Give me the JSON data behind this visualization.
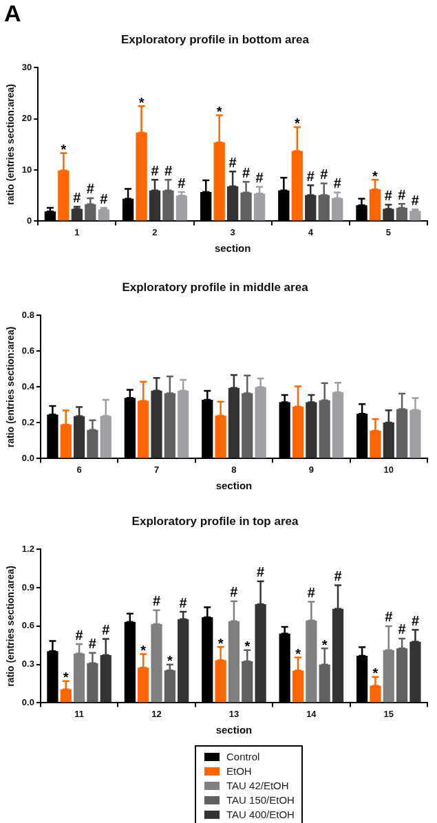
{
  "chart_data": [
    {
      "type": "bar",
      "title": "Exploratory profile in bottom area",
      "xlabel": "section",
      "ylabel": "ratio (entries section:area)",
      "annotations": [
        "A"
      ],
      "categories": [
        "1",
        "2",
        "3",
        "4",
        "5"
      ],
      "ylim": [
        0,
        30
      ],
      "yticks": [
        0,
        10,
        20,
        30
      ],
      "legend": false,
      "series": [
        {
          "color": "#000000",
          "values": [
            1.9,
            4.4,
            5.7,
            6.0,
            3.1
          ],
          "errors": [
            [
              1.9,
              2.6
            ],
            [
              4.4,
              6.3
            ],
            [
              5.7,
              8.0
            ],
            [
              6.0,
              8.5
            ],
            [
              3.1,
              4.4
            ]
          ]
        },
        {
          "color": "#ff6600",
          "values": [
            9.9,
            17.3,
            15.4,
            13.7,
            6.2
          ],
          "errors": [
            [
              9.9,
              13.3
            ],
            [
              17.3,
              22.5
            ],
            [
              15.4,
              20.7
            ],
            [
              13.7,
              18.4
            ],
            [
              6.2,
              8.1
            ]
          ],
          "value_labels": [
            "*",
            "*",
            "*",
            "*",
            "*"
          ]
        },
        {
          "color": "#333333",
          "values": [
            2.4,
            6.0,
            6.8,
            5.1,
            2.4
          ],
          "errors": [
            [
              2.4,
              2.8
            ],
            [
              6.0,
              8.1
            ],
            [
              6.8,
              9.7
            ],
            [
              5.1,
              7.0
            ],
            [
              2.4,
              3.2
            ]
          ],
          "value_labels": [
            "#",
            "#",
            "#",
            "#",
            "#"
          ]
        },
        {
          "color": "#606060",
          "values": [
            3.3,
            6.0,
            5.6,
            5.1,
            2.6
          ],
          "errors": [
            [
              3.3,
              4.5
            ],
            [
              6.0,
              8.1
            ],
            [
              5.6,
              7.7
            ],
            [
              5.1,
              7.4
            ],
            [
              2.6,
              3.4
            ]
          ],
          "value_labels": [
            "#",
            "#",
            "#",
            "#",
            "#"
          ]
        },
        {
          "color": "#a0a0a4",
          "values": [
            2.3,
            5.0,
            5.4,
            4.5,
            2.0
          ],
          "errors": [
            [
              2.3,
              2.6
            ],
            [
              5.0,
              5.7
            ],
            [
              5.4,
              6.7
            ],
            [
              4.5,
              5.6
            ],
            [
              2.0,
              2.3
            ]
          ],
          "value_labels": [
            "#",
            "#",
            "#",
            "#",
            "#"
          ]
        }
      ]
    },
    {
      "type": "bar",
      "title": "Exploratory profile in middle area",
      "xlabel": "section",
      "ylabel": "ratio (entries section:area)",
      "categories": [
        "6",
        "7",
        "8",
        "9",
        "10"
      ],
      "ylim": [
        0,
        0.8
      ],
      "yticks": [
        {
          "value": 0,
          "label": "0.0"
        },
        {
          "value": 0.2,
          "label": "0.2"
        },
        {
          "value": 0.4,
          "label": "0.4"
        },
        {
          "value": 0.6,
          "label": "0.6"
        },
        {
          "value": 0.8,
          "label": "0.8"
        }
      ],
      "legend": false,
      "series": [
        {
          "color": "#000000",
          "values": [
            0.246,
            0.339,
            0.328,
            0.315,
            0.251
          ],
          "errors": [
            [
              0.246,
              0.294
            ],
            [
              0.339,
              0.384
            ],
            [
              0.328,
              0.378
            ],
            [
              0.315,
              0.355
            ],
            [
              0.251,
              0.304
            ]
          ]
        },
        {
          "color": "#ff6600",
          "values": [
            0.19,
            0.323,
            0.24,
            0.29,
            0.155
          ],
          "errors": [
            [
              0.19,
              0.269
            ],
            [
              0.323,
              0.429
            ],
            [
              0.24,
              0.318
            ],
            [
              0.29,
              0.403
            ],
            [
              0.155,
              0.221
            ]
          ]
        },
        {
          "color": "#333333",
          "values": [
            0.237,
            0.379,
            0.395,
            0.315,
            0.202
          ],
          "errors": [
            [
              0.237,
              0.288
            ],
            [
              0.379,
              0.451
            ],
            [
              0.395,
              0.467
            ],
            [
              0.315,
              0.355
            ],
            [
              0.202,
              0.27
            ]
          ]
        },
        {
          "color": "#606060",
          "values": [
            0.16,
            0.365,
            0.365,
            0.326,
            0.277
          ],
          "errors": [
            [
              0.16,
              0.214
            ],
            [
              0.365,
              0.459
            ],
            [
              0.365,
              0.464
            ],
            [
              0.326,
              0.422
            ],
            [
              0.277,
              0.363
            ]
          ]
        },
        {
          "color": "#a0a0a4",
          "values": [
            0.238,
            0.379,
            0.4,
            0.371,
            0.272
          ],
          "errors": [
            [
              0.238,
              0.328
            ],
            [
              0.379,
              0.44
            ],
            [
              0.4,
              0.448
            ],
            [
              0.371,
              0.424
            ],
            [
              0.272,
              0.338
            ]
          ]
        }
      ]
    },
    {
      "type": "bar",
      "title": "Exploratory profile in top area",
      "xlabel": "section",
      "ylabel": "ratio (entries section:area)",
      "categories": [
        "11",
        "12",
        "13",
        "14",
        "15"
      ],
      "ylim": [
        0,
        1.2
      ],
      "yticks": [
        {
          "value": 0,
          "label": "0.0"
        },
        {
          "value": 0.3,
          "label": "0.3"
        },
        {
          "value": 0.6,
          "label": "0.6"
        },
        {
          "value": 0.9,
          "label": "0.9"
        },
        {
          "value": 1.2,
          "label": "1.2"
        }
      ],
      "legend": "bottom",
      "series": [
        {
          "name": "Control",
          "color": "#000000",
          "values": [
            0.404,
            0.633,
            0.67,
            0.542,
            0.368
          ],
          "errors": [
            [
              0.404,
              0.484
            ],
            [
              0.633,
              0.697
            ],
            [
              0.67,
              0.747
            ],
            [
              0.542,
              0.594
            ],
            [
              0.368,
              0.435
            ]
          ]
        },
        {
          "name": "EtOH",
          "color": "#ff6600",
          "values": [
            0.106,
            0.275,
            0.333,
            0.252,
            0.134
          ],
          "errors": [
            [
              0.106,
              0.17
            ],
            [
              0.275,
              0.381
            ],
            [
              0.333,
              0.437
            ],
            [
              0.252,
              0.354
            ],
            [
              0.134,
              0.203
            ]
          ],
          "value_labels": [
            "*",
            "*",
            "*",
            "*",
            "*"
          ]
        },
        {
          "name": "TAU 42/EtOH",
          "color": "#808080",
          "values": [
            0.385,
            0.615,
            0.639,
            0.644,
            0.412
          ],
          "errors": [
            [
              0.385,
              0.459
            ],
            [
              0.615,
              0.724
            ],
            [
              0.639,
              0.794
            ],
            [
              0.644,
              0.79
            ],
            [
              0.412,
              0.6
            ]
          ],
          "value_labels": [
            "#",
            "#",
            "#",
            "#",
            "#"
          ]
        },
        {
          "name": "TAU 150/EtOH",
          "color": "#606060",
          "values": [
            0.31,
            0.254,
            0.325,
            0.3,
            0.426
          ],
          "errors": [
            [
              0.31,
              0.391
            ],
            [
              0.254,
              0.3
            ],
            [
              0.325,
              0.412
            ],
            [
              0.3,
              0.426
            ],
            [
              0.426,
              0.503
            ]
          ],
          "value_labels": [
            "#",
            "*",
            "*",
            "*",
            "#"
          ]
        },
        {
          "name": "TAU 400/EtOH",
          "color": "#333333",
          "values": [
            0.374,
            0.654,
            0.772,
            0.735,
            0.478
          ],
          "errors": [
            [
              0.374,
              0.5
            ],
            [
              0.654,
              0.712
            ],
            [
              0.772,
              0.95
            ],
            [
              0.735,
              0.919
            ],
            [
              0.478,
              0.571
            ]
          ],
          "value_labels": [
            "#",
            "#",
            "#",
            "#",
            "#"
          ]
        }
      ]
    }
  ]
}
